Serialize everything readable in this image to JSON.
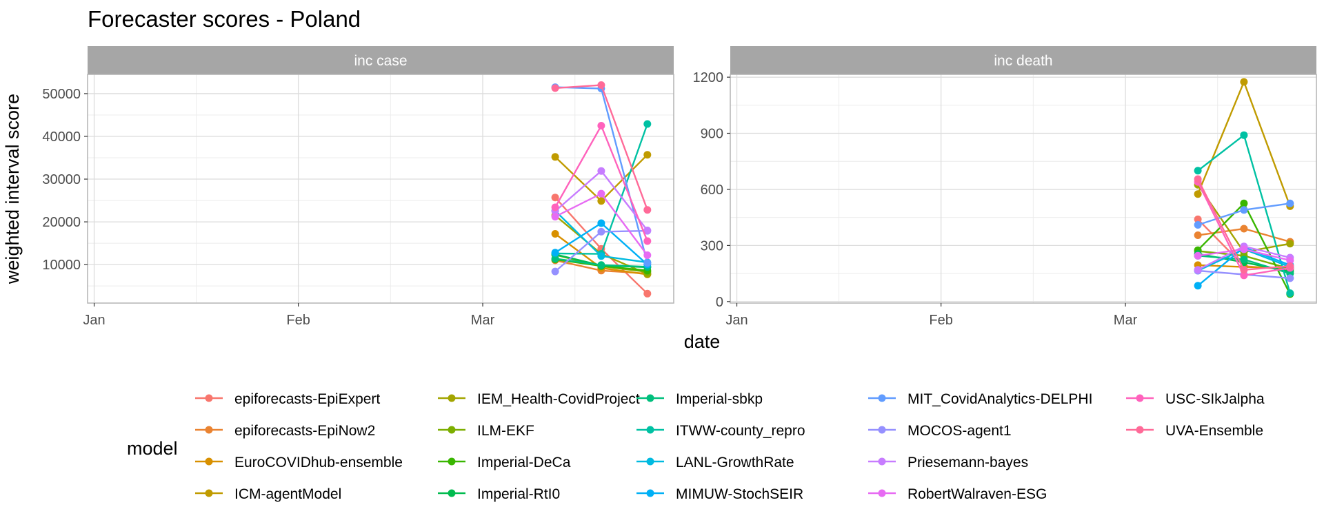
{
  "chart_data": {
    "type": "line",
    "title": "Forecaster scores - Poland",
    "xlabel": "date",
    "ylabel": "weighted interval score",
    "x_ticks": [
      "Jan",
      "Feb",
      "Mar"
    ],
    "x": [
      "2022-03-12",
      "2022-03-19",
      "2022-03-26"
    ],
    "legend_title": "model",
    "legend_position": "bottom",
    "grid": true,
    "colors": {
      "epiforecasts-EpiExpert": "#F8766D",
      "epiforecasts-EpiNow2": "#EA8331",
      "EuroCOVIDhub-ensemble": "#D89000",
      "ICM-agentModel": "#C09B00",
      "IEM_Health-CovidProject": "#A3A500",
      "ILM-EKF": "#7CAE00",
      "Imperial-DeCa": "#39B600",
      "Imperial-RtI0": "#00BB4E",
      "Imperial-sbkp": "#00BF7D",
      "ITWW-county_repro": "#00C1A3",
      "LANL-GrowthRate": "#00BAE0",
      "MIMUW-StochSEIR": "#00B0F6",
      "MIT_CovidAnalytics-DELPHI": "#619CFF",
      "MOCOS-agent1": "#9590FF",
      "Priesemann-bayes": "#C77CFF",
      "RobertWalraven-ESG": "#E76BF3",
      "USC-SIkJalpha": "#FF62BC",
      "UVA-Ensemble": "#FF6A98"
    },
    "panels": [
      {
        "label": "inc case",
        "y_ticks": [
          10000,
          20000,
          30000,
          40000,
          50000
        ],
        "ylim": [
          1000,
          54500
        ],
        "series": [
          {
            "name": "epiforecasts-EpiExpert",
            "values": [
              25700,
              13700,
              3200
            ]
          },
          {
            "name": "epiforecasts-EpiNow2",
            "values": [
              11000,
              8600,
              7900
            ]
          },
          {
            "name": "EuroCOVIDhub-ensemble",
            "values": [
              17200,
              9200,
              7700
            ]
          },
          {
            "name": "ICM-agentModel",
            "values": [
              35200,
              24900,
              35700
            ]
          },
          {
            "name": "IEM_Health-CovidProject",
            "values": [
              21500,
              12500,
              7800
            ]
          },
          {
            "name": "ILM-EKF",
            "values": [
              12300,
              9600,
              8300
            ]
          },
          {
            "name": "Imperial-DeCa",
            "values": [
              11200,
              9700,
              8600
            ]
          },
          {
            "name": "Imperial-RtI0",
            "values": [
              12400,
              9800,
              9400
            ]
          },
          {
            "name": "Imperial-sbkp",
            "values": [
              11400,
              9900,
              9500
            ]
          },
          {
            "name": "ITWW-county_repro",
            "values": [
              12600,
              12500,
              42900
            ]
          },
          {
            "name": "LANL-GrowthRate",
            "values": [
              22600,
              12000,
              10500
            ]
          },
          {
            "name": "MIMUW-StochSEIR",
            "values": [
              12800,
              19700,
              10000
            ]
          },
          {
            "name": "MIT_CovidAnalytics-DELPHI",
            "values": [
              51500,
              51200,
              10400
            ]
          },
          {
            "name": "MOCOS-agent1",
            "values": [
              8400,
              17700,
              17900
            ]
          },
          {
            "name": "Priesemann-bayes",
            "values": [
              22500,
              31900,
              18000
            ]
          },
          {
            "name": "RobertWalraven-ESG",
            "values": [
              21200,
              26600,
              12200
            ]
          },
          {
            "name": "USC-SIkJalpha",
            "values": [
              23400,
              42500,
              15500
            ]
          },
          {
            "name": "UVA-Ensemble",
            "values": [
              51300,
              52000,
              22800
            ]
          }
        ]
      },
      {
        "label": "inc death",
        "y_ticks": [
          0,
          300,
          600,
          900,
          1200
        ],
        "ylim": [
          -8,
          1215
        ],
        "series": [
          {
            "name": "epiforecasts-EpiExpert",
            "values": [
              440,
              190,
              170
            ]
          },
          {
            "name": "epiforecasts-EpiNow2",
            "values": [
              355,
              390,
              320
            ]
          },
          {
            "name": "EuroCOVIDhub-ensemble",
            "values": [
              195,
              185,
              180
            ]
          },
          {
            "name": "ICM-agentModel",
            "values": [
              575,
              1175,
              510
            ]
          },
          {
            "name": "IEM_Health-CovidProject",
            "values": [
              625,
              265,
              310
            ]
          },
          {
            "name": "ILM-EKF",
            "values": [
              270,
              245,
              175
            ]
          },
          {
            "name": "Imperial-DeCa",
            "values": [
              275,
              525,
              40
            ]
          },
          {
            "name": "Imperial-RtI0",
            "values": [
              255,
              210,
              160
            ]
          },
          {
            "name": "Imperial-sbkp",
            "values": [
              245,
              225,
              150
            ]
          },
          {
            "name": "ITWW-county_repro",
            "values": [
              700,
              890,
              45
            ]
          },
          {
            "name": "LANL-GrowthRate",
            "values": [
              165,
              280,
              185
            ]
          },
          {
            "name": "MIMUW-StochSEIR",
            "values": [
              85,
              290,
              195
            ]
          },
          {
            "name": "MIT_CovidAnalytics-DELPHI",
            "values": [
              410,
              490,
              525
            ]
          },
          {
            "name": "MOCOS-agent1",
            "values": [
              165,
              145,
              125
            ]
          },
          {
            "name": "Priesemann-bayes",
            "values": [
              170,
              295,
              235
            ]
          },
          {
            "name": "RobertWalraven-ESG",
            "values": [
              245,
              280,
              220
            ]
          },
          {
            "name": "USC-SIkJalpha",
            "values": [
              640,
              140,
              180
            ]
          },
          {
            "name": "UVA-Ensemble",
            "values": [
              655,
              170,
              190
            ]
          }
        ]
      }
    ]
  }
}
